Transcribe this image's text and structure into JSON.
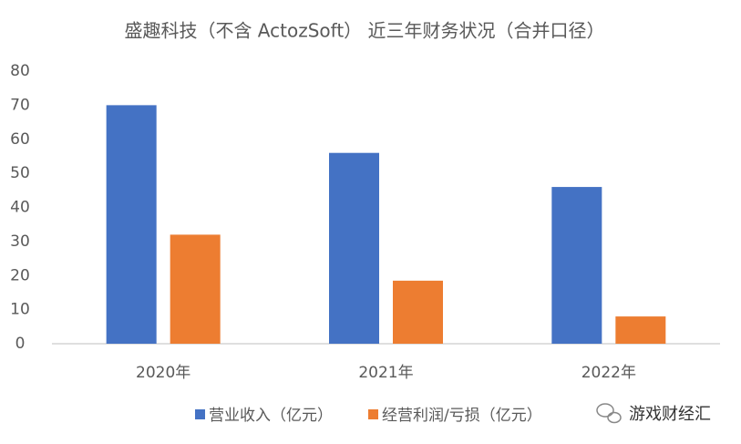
{
  "chart_data": {
    "type": "bar",
    "title": "盛趣科技（不含 ActozSoft） 近三年财务状况（合并口径）",
    "categories": [
      "2020年",
      "2021年",
      "2022年"
    ],
    "series": [
      {
        "name": "营业收入（亿元）",
        "color": "#4472c4",
        "values": [
          70,
          56,
          46
        ]
      },
      {
        "name": "经营利润/亏损（亿元）",
        "color": "#ed7d31",
        "values": [
          32,
          18.5,
          8
        ]
      }
    ],
    "ylim": [
      0,
      80
    ],
    "yticks": [
      0,
      10,
      20,
      30,
      40,
      50,
      60,
      70,
      80
    ],
    "grid": false,
    "legend": "bottom",
    "watermark": "游戏财经汇"
  }
}
